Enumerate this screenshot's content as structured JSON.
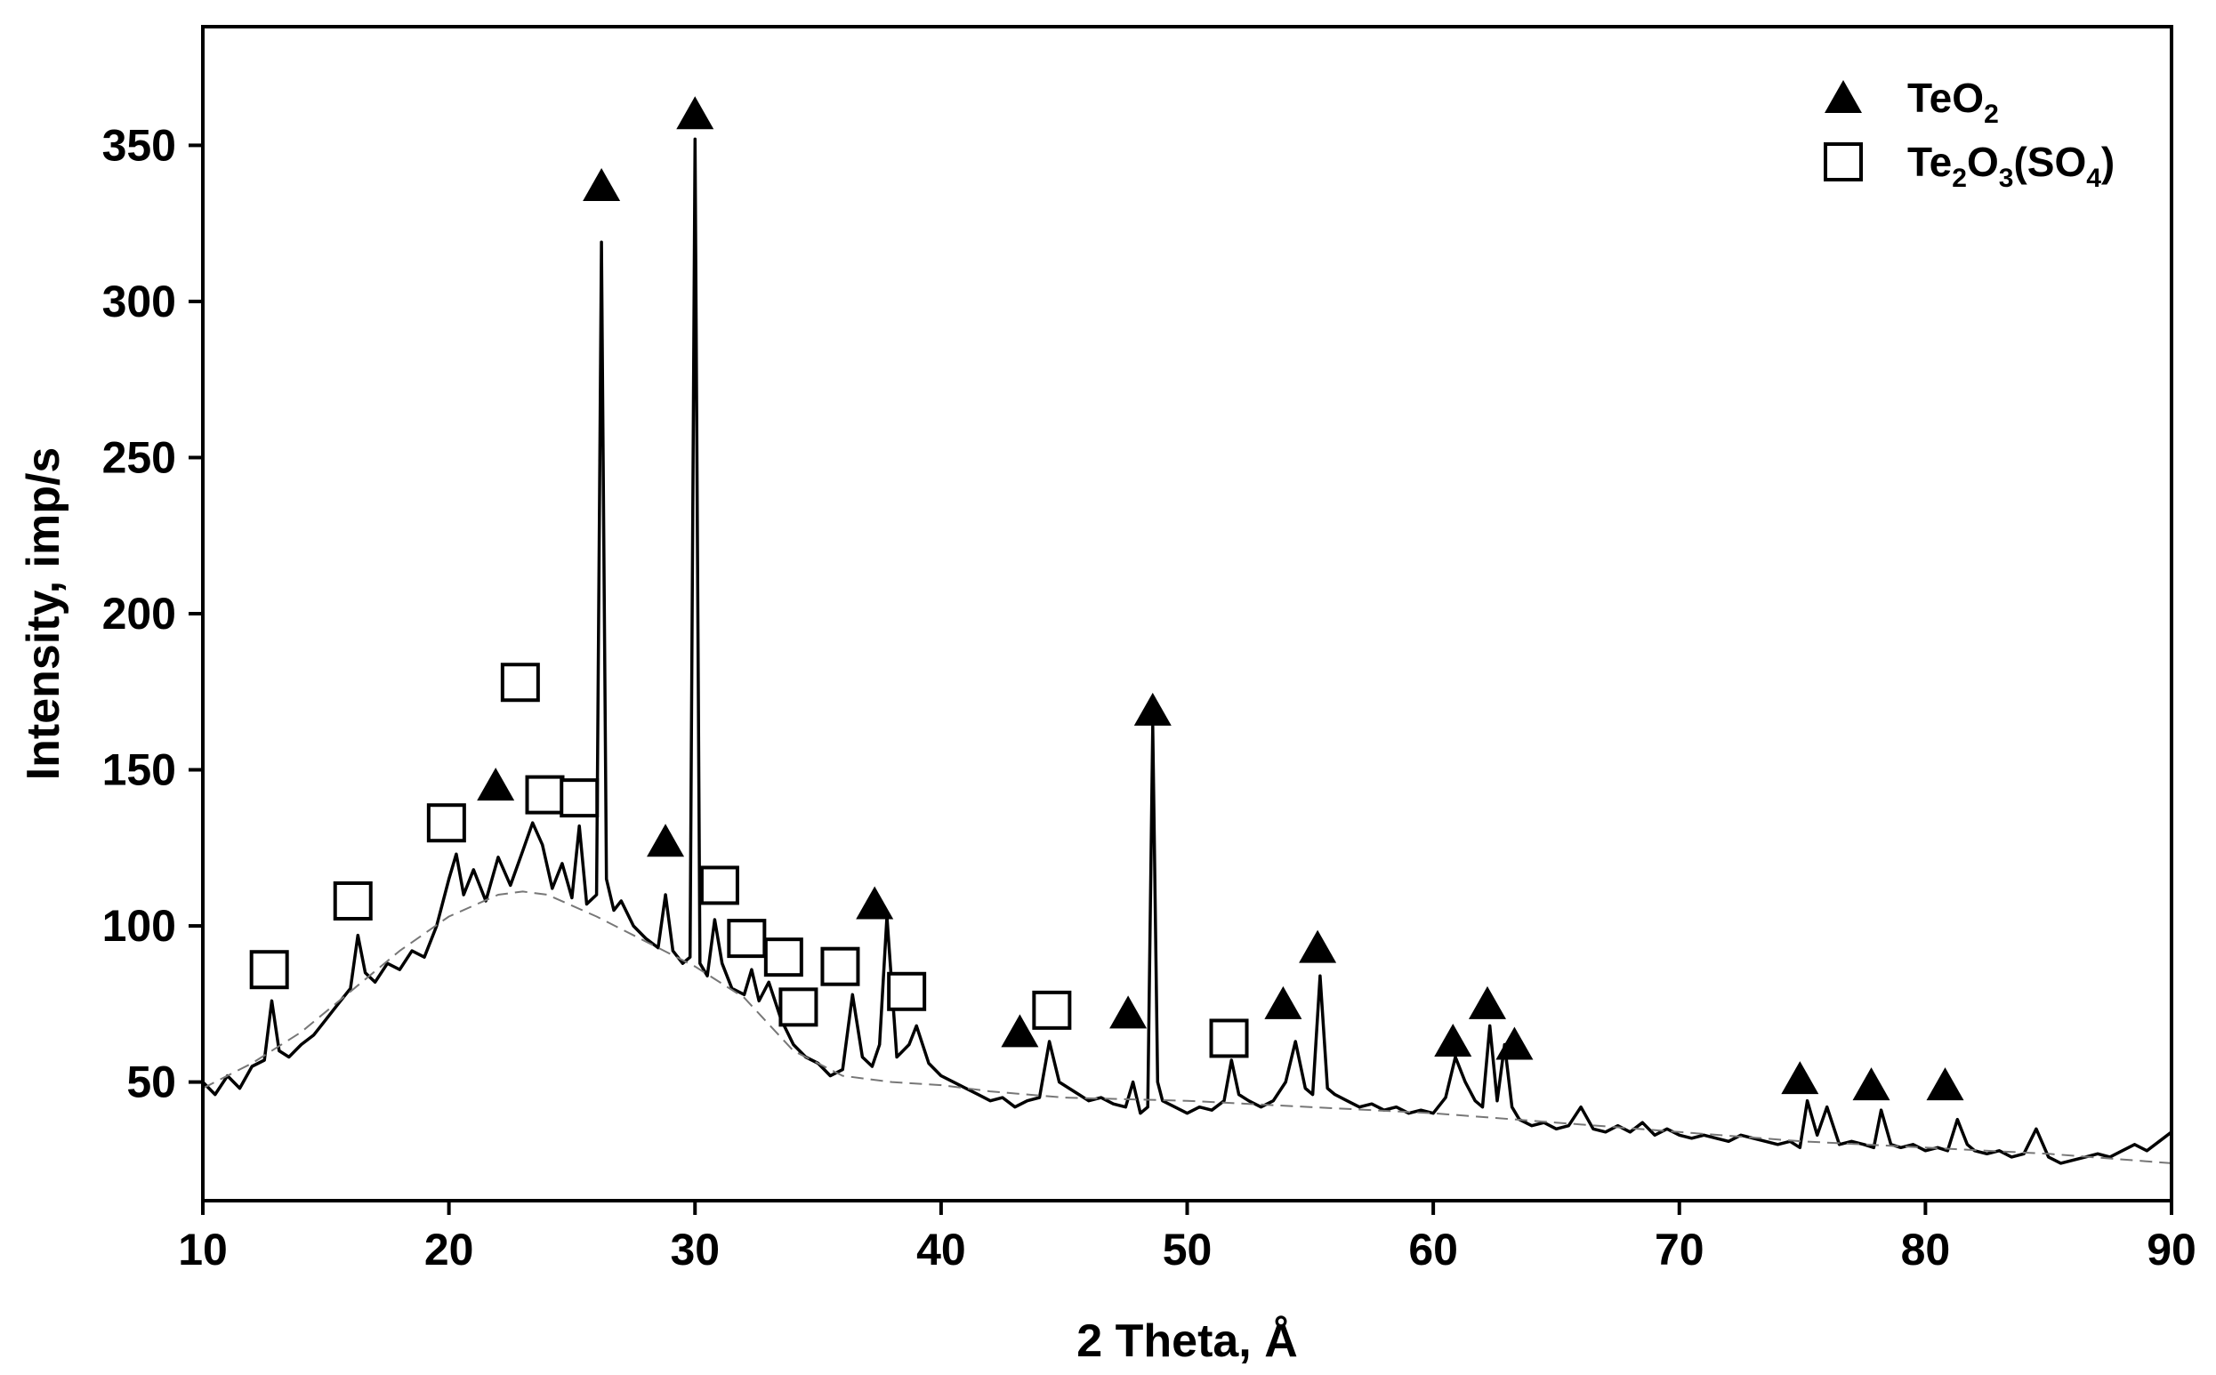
{
  "chart_data": {
    "type": "line",
    "title": "",
    "xlabel": "2 Theta, Å",
    "ylabel": "Intensity, imp/s",
    "xlim": [
      10,
      90
    ],
    "ylim": [
      12,
      388
    ],
    "x_ticks": [
      10,
      20,
      30,
      40,
      50,
      60,
      70,
      80,
      90
    ],
    "y_ticks": [
      50,
      100,
      150,
      200,
      250,
      300,
      350
    ],
    "grid": false,
    "legend_position": "top-right",
    "legend": [
      {
        "symbol": "filled-triangle",
        "text": "TeO",
        "sub": "2",
        "parts": []
      },
      {
        "symbol": "open-square",
        "text": "",
        "sub": "",
        "parts": [
          {
            "t": "Te",
            "s": false
          },
          {
            "t": "2",
            "s": true
          },
          {
            "t": "O",
            "s": false
          },
          {
            "t": "3",
            "s": true
          },
          {
            "t": "(SO",
            "s": false
          },
          {
            "t": "4",
            "s": true
          },
          {
            "t": ")",
            "s": false
          }
        ]
      }
    ],
    "series": [
      {
        "style": "solid-black",
        "x": [
          10.0,
          10.5,
          11.0,
          11.5,
          12.0,
          12.5,
          12.8,
          13.1,
          13.5,
          14.0,
          14.5,
          15.0,
          15.5,
          16.0,
          16.3,
          16.6,
          17.0,
          17.5,
          18.0,
          18.5,
          19.0,
          19.5,
          20.0,
          20.3,
          20.6,
          21.0,
          21.5,
          22.0,
          22.5,
          23.0,
          23.4,
          23.8,
          24.2,
          24.6,
          25.0,
          25.3,
          25.6,
          26.0,
          26.2,
          26.4,
          26.7,
          27.0,
          27.5,
          28.0,
          28.5,
          28.8,
          29.1,
          29.5,
          29.8,
          30.0,
          30.2,
          30.5,
          30.8,
          31.1,
          31.5,
          32.0,
          32.3,
          32.6,
          33.0,
          33.5,
          34.0,
          34.5,
          35.0,
          35.5,
          36.0,
          36.4,
          36.8,
          37.2,
          37.5,
          37.8,
          38.2,
          38.7,
          39.0,
          39.5,
          40.0,
          40.5,
          41.0,
          41.5,
          42.0,
          42.5,
          43.0,
          43.5,
          44.0,
          44.4,
          44.8,
          45.2,
          45.6,
          46.0,
          46.5,
          47.0,
          47.5,
          47.8,
          48.1,
          48.4,
          48.6,
          48.8,
          49.0,
          49.5,
          50.0,
          50.5,
          51.0,
          51.5,
          51.8,
          52.1,
          52.5,
          53.0,
          53.5,
          54.0,
          54.4,
          54.8,
          55.1,
          55.4,
          55.7,
          56.0,
          56.5,
          57.0,
          57.5,
          58.0,
          58.5,
          59.0,
          59.5,
          60.0,
          60.5,
          60.9,
          61.3,
          61.7,
          62.0,
          62.3,
          62.6,
          62.9,
          63.2,
          63.5,
          64.0,
          64.5,
          65.0,
          65.5,
          66.0,
          66.5,
          67.0,
          67.5,
          68.0,
          68.5,
          69.0,
          69.5,
          70.0,
          70.5,
          71.0,
          71.5,
          72.0,
          72.5,
          73.0,
          73.5,
          74.0,
          74.5,
          74.9,
          75.2,
          75.6,
          76.0,
          76.5,
          77.0,
          77.5,
          77.9,
          78.2,
          78.6,
          79.0,
          79.5,
          80.0,
          80.5,
          80.9,
          81.3,
          81.7,
          82.0,
          82.5,
          83.0,
          83.5,
          84.0,
          84.5,
          85.0,
          85.5,
          86.0,
          86.5,
          87.0,
          87.5,
          88.0,
          88.5,
          89.0,
          89.5,
          90.0
        ],
        "y": [
          50,
          46,
          52,
          48,
          55,
          57,
          76,
          60,
          58,
          62,
          65,
          70,
          75,
          80,
          97,
          85,
          82,
          88,
          86,
          92,
          90,
          100,
          115,
          123,
          110,
          118,
          108,
          122,
          113,
          124,
          133,
          126,
          112,
          120,
          109,
          132,
          107,
          110,
          319,
          115,
          105,
          108,
          100,
          96,
          93,
          110,
          92,
          88,
          90,
          352,
          88,
          84,
          102,
          88,
          80,
          78,
          86,
          76,
          82,
          70,
          62,
          58,
          56,
          52,
          54,
          78,
          58,
          55,
          62,
          103,
          58,
          62,
          68,
          56,
          52,
          50,
          48,
          46,
          44,
          45,
          42,
          44,
          45,
          63,
          50,
          48,
          46,
          44,
          45,
          43,
          42,
          50,
          40,
          42,
          164,
          50,
          44,
          42,
          40,
          42,
          41,
          44,
          57,
          46,
          44,
          42,
          44,
          50,
          63,
          48,
          46,
          84,
          48,
          46,
          44,
          42,
          43,
          41,
          42,
          40,
          41,
          40,
          45,
          58,
          50,
          44,
          42,
          68,
          44,
          62,
          42,
          38,
          36,
          37,
          35,
          36,
          42,
          35,
          34,
          36,
          34,
          37,
          33,
          35,
          33,
          32,
          33,
          32,
          31,
          33,
          32,
          31,
          30,
          31,
          29,
          44,
          33,
          42,
          30,
          31,
          30,
          29,
          41,
          30,
          29,
          30,
          28,
          29,
          28,
          38,
          30,
          28,
          27,
          28,
          26,
          27,
          35,
          26,
          24,
          25,
          26,
          27,
          26,
          28,
          30,
          28,
          31,
          34
        ]
      },
      {
        "style": "dashed-gray",
        "x": [
          10,
          12,
          14,
          16,
          18,
          20,
          22,
          23,
          24,
          26,
          28,
          30,
          32,
          34,
          36,
          38,
          40,
          42,
          45,
          50,
          55,
          60,
          65,
          70,
          75,
          80,
          85,
          90
        ],
        "y": [
          48,
          56,
          66,
          79,
          92,
          103,
          110,
          111,
          110,
          103,
          95,
          87,
          77,
          60,
          52,
          50,
          49,
          47,
          45,
          44,
          42,
          40,
          37,
          34,
          31,
          29,
          27,
          24
        ]
      }
    ],
    "markers": [
      {
        "symbol": "open-square",
        "points": [
          {
            "x": 12.7,
            "y": 86
          },
          {
            "x": 16.1,
            "y": 108
          },
          {
            "x": 19.9,
            "y": 133
          },
          {
            "x": 22.9,
            "y": 178
          },
          {
            "x": 23.9,
            "y": 142
          },
          {
            "x": 25.3,
            "y": 141
          },
          {
            "x": 31.0,
            "y": 113
          },
          {
            "x": 32.1,
            "y": 96
          },
          {
            "x": 33.6,
            "y": 90
          },
          {
            "x": 34.2,
            "y": 74
          },
          {
            "x": 35.9,
            "y": 87
          },
          {
            "x": 38.6,
            "y": 79
          },
          {
            "x": 44.5,
            "y": 73
          },
          {
            "x": 51.7,
            "y": 64
          }
        ]
      },
      {
        "symbol": "filled-triangle",
        "points": [
          {
            "x": 21.9,
            "y": 145
          },
          {
            "x": 26.2,
            "y": 337
          },
          {
            "x": 28.8,
            "y": 127
          },
          {
            "x": 30.0,
            "y": 360
          },
          {
            "x": 37.3,
            "y": 107
          },
          {
            "x": 43.2,
            "y": 66
          },
          {
            "x": 47.6,
            "y": 72
          },
          {
            "x": 48.6,
            "y": 169
          },
          {
            "x": 53.9,
            "y": 75
          },
          {
            "x": 55.3,
            "y": 93
          },
          {
            "x": 60.8,
            "y": 63
          },
          {
            "x": 62.2,
            "y": 75
          },
          {
            "x": 63.3,
            "y": 62
          },
          {
            "x": 74.9,
            "y": 51
          },
          {
            "x": 77.8,
            "y": 49
          },
          {
            "x": 80.8,
            "y": 49
          }
        ]
      }
    ]
  }
}
